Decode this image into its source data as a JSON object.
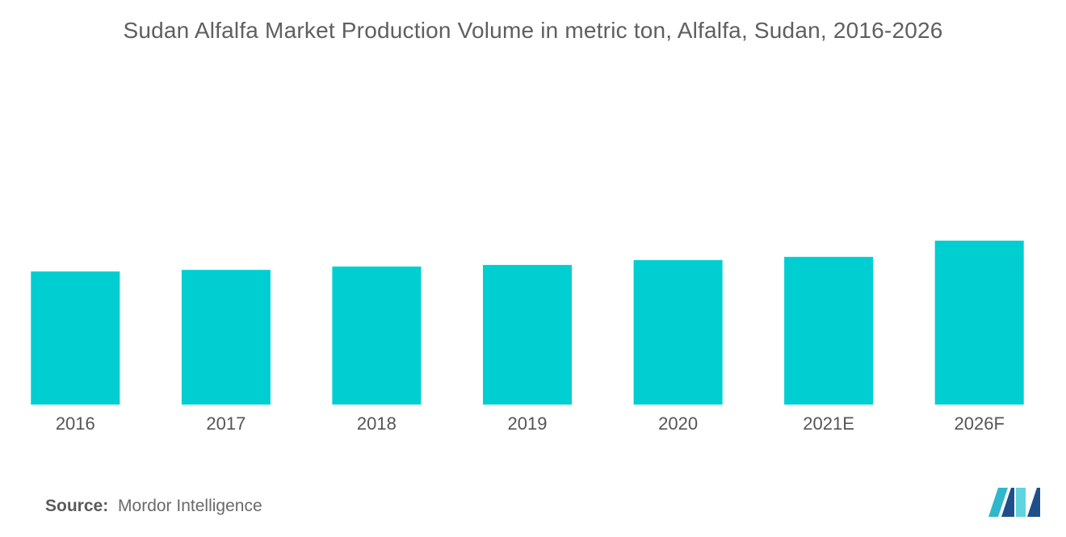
{
  "title": "Sudan Alfalfa Market Production Volume in metric ton, Alfalfa, Sudan, 2016-2026",
  "source": {
    "label": "Source:",
    "text": "Mordor Intelligence"
  },
  "logo": {
    "icon": "mordor-intelligence-logo",
    "colors": [
      "#1e4f8a",
      "#2fb8c9",
      "#5fd3df"
    ]
  },
  "chart_data": {
    "type": "bar",
    "title": "Sudan Alfalfa Market Production Volume in metric ton, Alfalfa, Sudan, 2016-2026",
    "categories": [
      "2016",
      "2017",
      "2018",
      "2019",
      "2020",
      "2021E",
      "2026F"
    ],
    "values": [
      82,
      83,
      85,
      86,
      89,
      91,
      101
    ],
    "xlabel": "",
    "ylabel": "",
    "ylim": [
      0,
      200
    ],
    "grid": false,
    "legend": "none",
    "bar_color": "#00ced1"
  }
}
